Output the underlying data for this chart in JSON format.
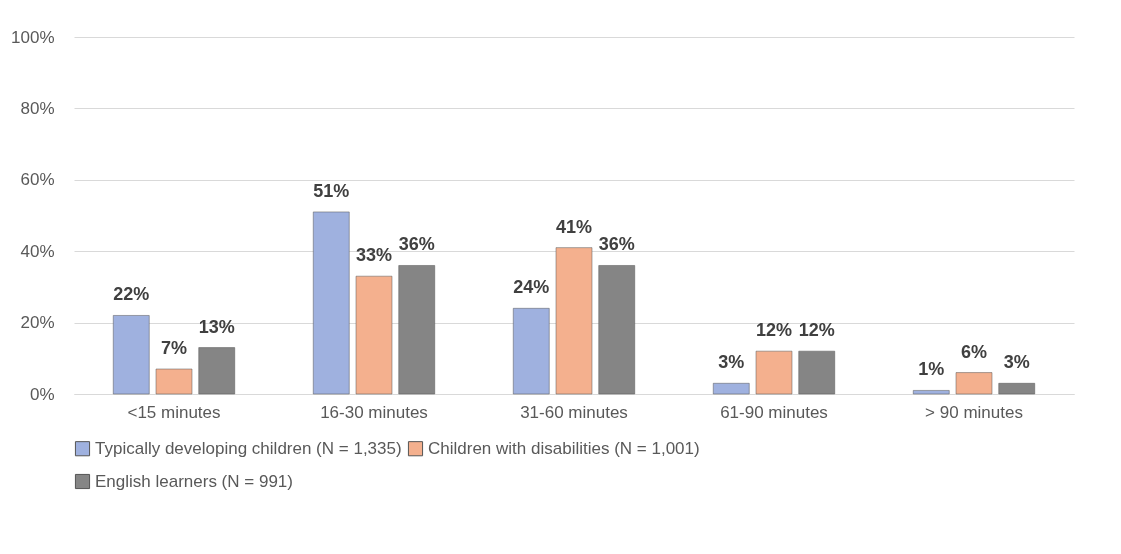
{
  "chart_data": {
    "type": "bar",
    "categories": [
      "<15 minutes",
      "16-30 minutes",
      "31-60 minutes",
      "61-90 minutes",
      "> 90 minutes"
    ],
    "series": [
      {
        "name": "Typically developing children (N = 1,335)",
        "color": "#9fb1df",
        "values": [
          22,
          51,
          24,
          3,
          1
        ],
        "value_labels": [
          "22%",
          "51%",
          "24%",
          "3%",
          "1%"
        ]
      },
      {
        "name": "Children with disabilities (N = 1,001)",
        "color": "#f4b08e",
        "values": [
          7,
          33,
          41,
          12,
          6
        ],
        "value_labels": [
          "7%",
          "33%",
          "41%",
          "12%",
          "6%"
        ]
      },
      {
        "name": "English learners (N = 991)",
        "color": "#858585",
        "values": [
          13,
          36,
          36,
          12,
          3
        ],
        "value_labels": [
          "13%",
          "36%",
          "36%",
          "12%",
          "3%"
        ]
      }
    ],
    "ylim": [
      0,
      100
    ],
    "yticks": [
      {
        "value": 0,
        "label": "0%"
      },
      {
        "value": 20,
        "label": "20%"
      },
      {
        "value": 40,
        "label": "40%"
      },
      {
        "value": 60,
        "label": "60%"
      },
      {
        "value": 80,
        "label": "80%"
      },
      {
        "value": 100,
        "label": "100%"
      }
    ],
    "grid": "y",
    "legend": "bottom"
  }
}
